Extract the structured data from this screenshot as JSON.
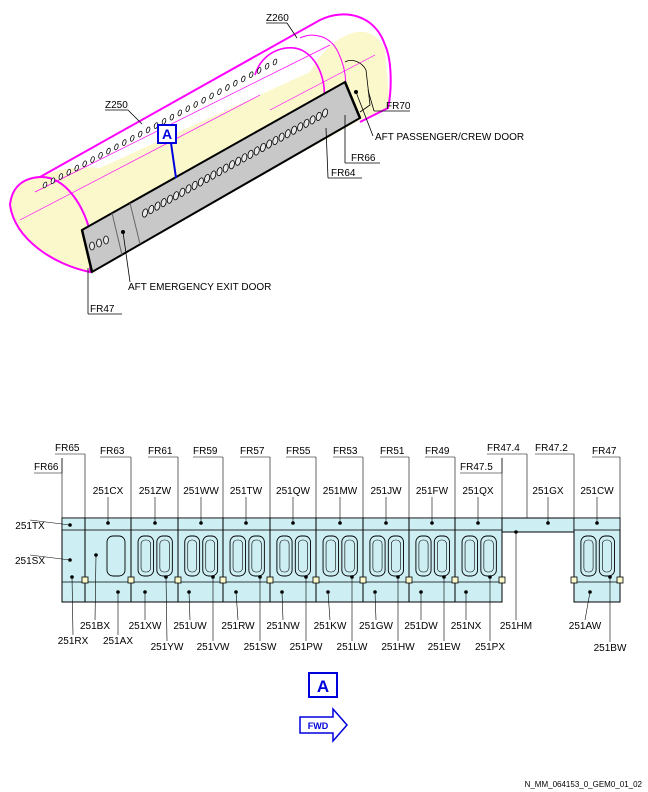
{
  "view_a": {
    "fuselage_labels": {
      "z260": "Z260",
      "z250": "Z250",
      "fr70": "FR70",
      "fr66": "FR66",
      "fr64": "FR64",
      "fr47": "FR47",
      "aft_passenger_crew_door": "AFT PASSENGER/CREW DOOR",
      "aft_emergency_exit_door": "AFT EMERGENCY EXIT DOOR"
    },
    "view_marker": "A"
  },
  "panel_view": {
    "frame_labels": [
      "FR66",
      "FR65",
      "FR63",
      "FR61",
      "FR59",
      "FR57",
      "FR55",
      "FR53",
      "FR51",
      "FR49",
      "FR47.5",
      "FR47.4",
      "FR47.2",
      "FR47"
    ],
    "top_panels": [
      "251CX",
      "251ZW",
      "251WW",
      "251TW",
      "251QW",
      "251MW",
      "251JW",
      "251FW",
      "251QX",
      "251GX",
      "251CW"
    ],
    "left_panels": [
      "251TX",
      "251SX"
    ],
    "bottom_upper_row": [
      "251BX",
      "251XW",
      "251UW",
      "251RW",
      "251NW",
      "251KW",
      "251GW",
      "251DW",
      "251NX",
      "251HM",
      "251AW"
    ],
    "bottom_lower_row": [
      "251RX",
      "251AX",
      "251YW",
      "251VW",
      "251SW",
      "251PW",
      "251LW",
      "251HW",
      "251EW",
      "251PX",
      "251BW"
    ],
    "view_marker": "A",
    "fwd_arrow": "FWD"
  },
  "figure_ref": "N_MM_064153_0_GEM0_01_02",
  "colors": {
    "fuselage_fill": "#fbf8cc",
    "fuselage_edge": "#ff00ff",
    "door_fill": "#c8c8c8",
    "panel_fill": "#cdeef2",
    "marker_blue": "#0000dd"
  }
}
